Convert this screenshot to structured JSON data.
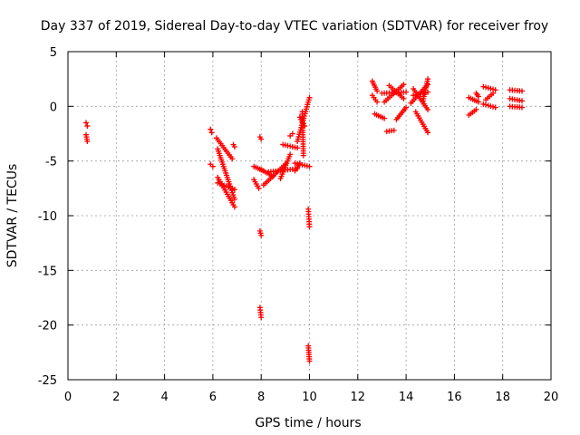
{
  "chart_data": {
    "type": "scatter",
    "title": "Day 337 of 2019, Sidereal Day-to-day VTEC variation (SDTVAR) for receiver froy",
    "xlabel": "GPS time / hours",
    "ylabel": "SDTVAR / TECUs",
    "xlim": [
      0,
      20
    ],
    "ylim": [
      -25,
      5
    ],
    "xticks": [
      0,
      2,
      4,
      6,
      8,
      10,
      12,
      14,
      16,
      18,
      20
    ],
    "yticks": [
      5,
      0,
      -5,
      -10,
      -15,
      -20,
      -25
    ],
    "grid": true,
    "marker": "+",
    "colors": {
      "points": "#ff0000",
      "grid": "#a0a0a0",
      "axes": "#000000"
    },
    "series": [
      {
        "name": "SDTVAR",
        "segments": [
          [
            [
              0.75,
              -1.5
            ],
            [
              0.8,
              -1.8
            ]
          ],
          [
            [
              0.75,
              -2.6
            ],
            [
              0.8,
              -3.2
            ]
          ],
          [
            [
              5.9,
              -2.1
            ],
            [
              5.95,
              -2.4
            ]
          ],
          [
            [
              5.9,
              -5.3
            ],
            [
              6.0,
              -5.5
            ]
          ],
          [
            [
              6.15,
              -2.9
            ],
            [
              6.8,
              -4.8
            ]
          ],
          [
            [
              6.2,
              -3.9
            ],
            [
              6.9,
              -8.5
            ]
          ],
          [
            [
              6.2,
              -6.5
            ],
            [
              6.9,
              -9.2
            ]
          ],
          [
            [
              6.2,
              -7.0
            ],
            [
              6.9,
              -7.6
            ]
          ],
          [
            [
              6.85,
              -3.5
            ],
            [
              6.9,
              -3.7
            ]
          ],
          [
            [
              7.7,
              -5.5
            ],
            [
              8.1,
              -5.9
            ]
          ],
          [
            [
              7.7,
              -6.7
            ],
            [
              7.9,
              -7.5
            ]
          ],
          [
            [
              8.0,
              -5.8
            ],
            [
              8.5,
              -6.4
            ]
          ],
          [
            [
              7.95,
              -2.8
            ],
            [
              8.0,
              -3.0
            ]
          ],
          [
            [
              7.95,
              -11.4
            ],
            [
              8.0,
              -11.8
            ]
          ],
          [
            [
              7.95,
              -18.4
            ],
            [
              8.0,
              -19.3
            ]
          ],
          [
            [
              8.1,
              -7.2
            ],
            [
              9.0,
              -5.3
            ]
          ],
          [
            [
              8.3,
              -6.0
            ],
            [
              9.5,
              -5.7
            ]
          ],
          [
            [
              8.8,
              -6.6
            ],
            [
              9.2,
              -4.4
            ]
          ],
          [
            [
              8.9,
              -3.5
            ],
            [
              9.5,
              -3.8
            ]
          ],
          [
            [
              9.2,
              -2.7
            ],
            [
              9.3,
              -2.5
            ]
          ],
          [
            [
              9.4,
              -5.2
            ],
            [
              10.0,
              -5.5
            ]
          ],
          [
            [
              9.4,
              -5.9
            ],
            [
              9.6,
              -5.2
            ]
          ],
          [
            [
              9.5,
              -3.2
            ],
            [
              10.0,
              0.8
            ]
          ],
          [
            [
              9.6,
              -1.0
            ],
            [
              9.8,
              -1.8
            ]
          ],
          [
            [
              9.7,
              -0.5
            ],
            [
              9.75,
              -4.5
            ]
          ],
          [
            [
              9.95,
              -9.4
            ],
            [
              10.0,
              -11.0
            ]
          ],
          [
            [
              9.95,
              -21.9
            ],
            [
              10.0,
              -23.3
            ]
          ],
          [
            [
              12.6,
              2.3
            ],
            [
              12.8,
              1.4
            ]
          ],
          [
            [
              12.6,
              1.0
            ],
            [
              12.8,
              0.4
            ]
          ],
          [
            [
              12.7,
              -0.7
            ],
            [
              13.1,
              -1.1
            ]
          ],
          [
            [
              13.0,
              1.2
            ],
            [
              14.0,
              1.3
            ]
          ],
          [
            [
              13.1,
              0.4
            ],
            [
              13.9,
              2.0
            ]
          ],
          [
            [
              13.3,
              1.9
            ],
            [
              13.9,
              0.7
            ]
          ],
          [
            [
              13.2,
              -2.3
            ],
            [
              13.5,
              -2.2
            ]
          ],
          [
            [
              13.6,
              -1.2
            ],
            [
              14.0,
              -0.1
            ]
          ],
          [
            [
              14.2,
              0.3
            ],
            [
              14.9,
              2.0
            ]
          ],
          [
            [
              14.3,
              1.6
            ],
            [
              14.9,
              -0.3
            ]
          ],
          [
            [
              14.3,
              1.0
            ],
            [
              14.9,
              1.3
            ]
          ],
          [
            [
              14.4,
              -0.5
            ],
            [
              14.9,
              -2.4
            ]
          ],
          [
            [
              14.7,
              0.5
            ],
            [
              14.9,
              2.5
            ]
          ],
          [
            [
              16.6,
              0.8
            ],
            [
              17.0,
              0.4
            ]
          ],
          [
            [
              16.6,
              -0.8
            ],
            [
              16.9,
              -0.3
            ]
          ],
          [
            [
              16.9,
              1.2
            ],
            [
              17.0,
              0.9
            ]
          ],
          [
            [
              17.2,
              1.8
            ],
            [
              17.7,
              1.5
            ]
          ],
          [
            [
              17.2,
              0.2
            ],
            [
              17.7,
              -0.1
            ]
          ],
          [
            [
              17.3,
              0.6
            ],
            [
              17.6,
              1.2
            ]
          ],
          [
            [
              18.3,
              1.5
            ],
            [
              18.8,
              1.4
            ]
          ],
          [
            [
              18.3,
              0.7
            ],
            [
              18.8,
              0.5
            ]
          ],
          [
            [
              18.3,
              0.0
            ],
            [
              18.8,
              -0.1
            ]
          ]
        ]
      }
    ]
  }
}
